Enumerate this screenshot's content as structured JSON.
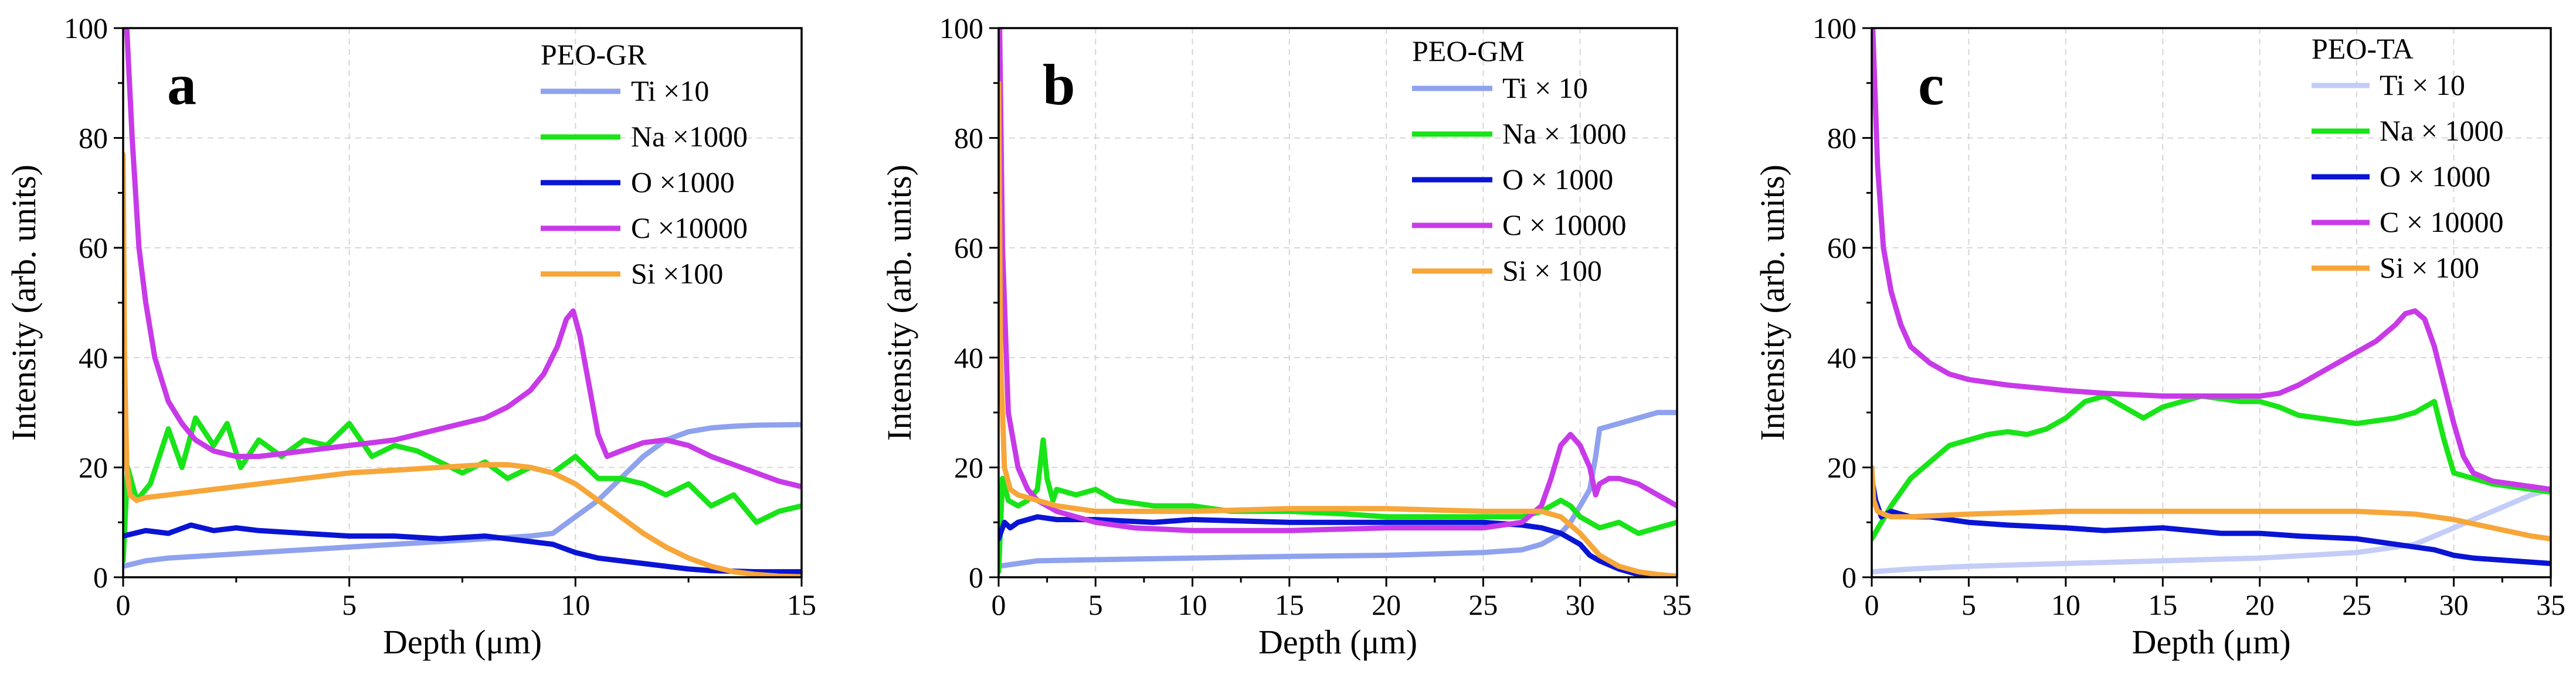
{
  "chart_data": [
    {
      "type": "line",
      "panel_label": "a",
      "legend_title": "PEO-GR",
      "xlabel": "Depth (μm)",
      "ylabel": "Intensity (arb. units)",
      "xlim": [
        0,
        15
      ],
      "ylim": [
        0,
        100
      ],
      "xticks": [
        0,
        5,
        10,
        15
      ],
      "yticks": [
        0,
        20,
        40,
        60,
        80,
        100
      ],
      "grid": true,
      "legend_position": "top-right",
      "series": [
        {
          "name": "Ti ×10",
          "color": "#8fa2ee",
          "x": [
            0,
            0.5,
            1,
            2,
            3,
            4,
            5,
            6,
            7,
            8,
            9,
            9.5,
            10,
            10.5,
            11,
            11.5,
            12,
            12.5,
            13,
            13.5,
            14,
            15
          ],
          "y": [
            2,
            3,
            3.5,
            4,
            4.5,
            5,
            5.5,
            6,
            6.5,
            7,
            7.5,
            8,
            11,
            14,
            18,
            22,
            25,
            26.5,
            27.2,
            27.5,
            27.7,
            27.8
          ]
        },
        {
          "name": "Na ×1000",
          "color": "#18e418",
          "x": [
            0,
            0.1,
            0.3,
            0.6,
            1,
            1.3,
            1.6,
            2,
            2.3,
            2.6,
            3,
            3.5,
            4,
            4.5,
            5,
            5.5,
            6,
            6.5,
            7,
            7.5,
            8,
            8.5,
            9,
            9.5,
            10,
            10.5,
            11,
            11.5,
            12,
            12.5,
            13,
            13.5,
            14,
            14.5,
            15
          ],
          "y": [
            3,
            20,
            14,
            17,
            27,
            20,
            29,
            24,
            28,
            20,
            25,
            22,
            25,
            24,
            28,
            22,
            24,
            23,
            21,
            19,
            21,
            18,
            20,
            19,
            22,
            18,
            18,
            17,
            15,
            17,
            13,
            15,
            10,
            12,
            13
          ]
        },
        {
          "name": "O ×1000",
          "color": "#0a14d4",
          "x": [
            0,
            0.5,
            1,
            1.5,
            2,
            2.5,
            3,
            4,
            5,
            6,
            7,
            8,
            9,
            9.5,
            10,
            10.5,
            11,
            11.5,
            12,
            12.5,
            13,
            14,
            15
          ],
          "y": [
            7.5,
            8.5,
            8,
            9.5,
            8.5,
            9,
            8.5,
            8,
            7.5,
            7.5,
            7,
            7.5,
            6.5,
            6,
            4.5,
            3.5,
            3,
            2.5,
            2,
            1.5,
            1.2,
            1,
            1
          ]
        },
        {
          "name": "C ×10000",
          "color": "#c83ae8",
          "x": [
            0.08,
            0.2,
            0.35,
            0.5,
            0.7,
            1,
            1.3,
            1.6,
            2,
            2.5,
            3,
            3.5,
            4,
            5,
            6,
            7,
            8,
            8.5,
            9,
            9.3,
            9.6,
            9.8,
            9.95,
            10.1,
            10.3,
            10.5,
            10.7,
            11,
            11.5,
            12,
            12.5,
            13,
            13.5,
            14,
            14.5,
            15
          ],
          "y": [
            100,
            80,
            60,
            50,
            40,
            32,
            28,
            25,
            23,
            22,
            22,
            22.5,
            23,
            24,
            25,
            27,
            29,
            31,
            34,
            37,
            42,
            47,
            48.5,
            44,
            35,
            26,
            22,
            23,
            24.5,
            25,
            24,
            22,
            20.5,
            19,
            17.5,
            16.5
          ]
        },
        {
          "name": "Si ×100",
          "color": "#f7a63a",
          "x": [
            0,
            0.03,
            0.08,
            0.15,
            0.3,
            0.5,
            1,
            2,
            3,
            4,
            5,
            6,
            7,
            8,
            8.5,
            9,
            9.5,
            10,
            10.5,
            11,
            11.5,
            12,
            12.5,
            13,
            13.5,
            14,
            14.5,
            15
          ],
          "y": [
            77,
            40,
            20,
            15,
            14,
            14.5,
            15,
            16,
            17,
            18,
            19,
            19.5,
            20,
            20.5,
            20.5,
            20,
            19,
            17,
            14,
            11,
            8,
            5.5,
            3.5,
            2,
            1,
            0.5,
            0.2,
            0.1
          ]
        }
      ]
    },
    {
      "type": "line",
      "panel_label": "b",
      "legend_title": "PEO-GM",
      "xlabel": "Depth (μm)",
      "ylabel": "Intensity (arb. units)",
      "xlim": [
        0,
        35
      ],
      "ylim": [
        0,
        100
      ],
      "xticks": [
        0,
        5,
        10,
        15,
        20,
        25,
        30,
        35
      ],
      "yticks": [
        0,
        20,
        40,
        60,
        80,
        100
      ],
      "grid": true,
      "legend_position": "top-right",
      "series": [
        {
          "name": "Ti × 10",
          "color": "#8fa2ee",
          "x": [
            0,
            1,
            2,
            5,
            10,
            15,
            20,
            25,
            27,
            28,
            29,
            29.5,
            30,
            30.5,
            30.8,
            31,
            32,
            33,
            34,
            35
          ],
          "y": [
            2,
            2.5,
            3,
            3.2,
            3.5,
            3.8,
            4,
            4.5,
            5,
            6,
            8,
            10,
            13,
            16,
            22,
            27,
            28,
            29,
            30,
            30
          ]
        },
        {
          "name": "Na × 1000",
          "color": "#18e418",
          "x": [
            0,
            0.2,
            0.5,
            1,
            1.5,
            2,
            2.3,
            2.5,
            2.8,
            3,
            4,
            5,
            6,
            8,
            10,
            12,
            15,
            18,
            20,
            22,
            25,
            27,
            28,
            29,
            29.5,
            30,
            30.5,
            31,
            32,
            33,
            34,
            35
          ],
          "y": [
            1,
            18,
            14,
            13,
            14,
            16,
            25,
            18,
            14,
            16,
            15,
            16,
            14,
            13,
            13,
            12,
            12,
            11.5,
            11,
            11,
            11,
            11,
            12,
            14,
            13,
            11,
            10,
            9,
            10,
            8,
            9,
            10
          ]
        },
        {
          "name": "O × 1000",
          "color": "#0a14d4",
          "x": [
            0,
            0.3,
            0.6,
            1,
            2,
            3,
            5,
            8,
            10,
            15,
            20,
            25,
            27,
            28,
            29,
            30,
            30.5,
            31,
            32,
            33,
            34,
            35
          ],
          "y": [
            7,
            10,
            9,
            10,
            11,
            10.5,
            10.5,
            10,
            10.5,
            10,
            10,
            10,
            9.5,
            9,
            8,
            6,
            4,
            3,
            1.5,
            0.5,
            0.2,
            0.1
          ]
        },
        {
          "name": "C × 10000",
          "color": "#c83ae8",
          "x": [
            0.05,
            0.2,
            0.5,
            1,
            1.5,
            2,
            3,
            4,
            5,
            7,
            10,
            15,
            20,
            25,
            27,
            28,
            28.5,
            29,
            29.5,
            30,
            30.5,
            30.8,
            31,
            31.5,
            32,
            33,
            34,
            35
          ],
          "y": [
            100,
            60,
            30,
            20,
            16,
            14,
            12,
            11,
            10,
            9,
            8.5,
            8.5,
            9,
            9,
            10,
            13,
            18,
            24,
            26,
            24,
            20,
            15,
            17,
            18,
            18,
            17,
            15,
            13
          ]
        },
        {
          "name": "Si × 100",
          "color": "#f7a63a",
          "x": [
            0,
            0.1,
            0.3,
            0.6,
            1,
            2,
            3,
            5,
            10,
            15,
            20,
            25,
            27,
            28,
            29,
            30,
            30.5,
            31,
            32,
            33,
            34,
            35
          ],
          "y": [
            90,
            40,
            20,
            16,
            15,
            14,
            13,
            12,
            12,
            12.5,
            12.5,
            12,
            12,
            12,
            11,
            8,
            6,
            4,
            2,
            1,
            0.5,
            0.2
          ]
        }
      ]
    },
    {
      "type": "line",
      "panel_label": "c",
      "legend_title": "PEO-TA",
      "xlabel": "Depth (μm)",
      "ylabel": "Intensity (arb. units)",
      "xlim": [
        0,
        35
      ],
      "ylim": [
        0,
        100
      ],
      "xticks": [
        0,
        5,
        10,
        15,
        20,
        25,
        30,
        35
      ],
      "yticks": [
        0,
        20,
        40,
        60,
        80,
        100
      ],
      "grid": true,
      "legend_position": "top-right",
      "series": [
        {
          "name": "Ti × 10",
          "color": "#c3cdf7",
          "x": [
            0,
            2,
            5,
            10,
            15,
            20,
            25,
            28,
            30,
            32,
            34,
            35
          ],
          "y": [
            1,
            1.5,
            2,
            2.5,
            3,
            3.5,
            4.5,
            6,
            9,
            12,
            15,
            16
          ]
        },
        {
          "name": "Na × 1000",
          "color": "#18e418",
          "x": [
            0,
            0.5,
            1,
            2,
            3,
            4,
            5,
            6,
            7,
            8,
            9,
            10,
            11,
            12,
            13,
            14,
            15,
            16,
            17,
            18,
            19,
            20,
            21,
            22,
            23,
            24,
            25,
            26,
            27,
            28,
            28.5,
            29,
            29.5,
            30,
            31,
            32,
            33,
            34,
            35
          ],
          "y": [
            7,
            10,
            13,
            18,
            21,
            24,
            25,
            26,
            26.5,
            26,
            27,
            29,
            32,
            33,
            31,
            29,
            31,
            32,
            33,
            32.5,
            32,
            32,
            31,
            29.5,
            29,
            28.5,
            28,
            28.5,
            29,
            30,
            31,
            32,
            25,
            19,
            18,
            17,
            16.5,
            16,
            15.5
          ]
        },
        {
          "name": "O × 1000",
          "color": "#0a14d4",
          "x": [
            0,
            0.2,
            0.5,
            1,
            2,
            3,
            5,
            7,
            10,
            12,
            15,
            18,
            20,
            22,
            25,
            27,
            29,
            30,
            31,
            33,
            35
          ],
          "y": [
            18,
            14,
            11,
            12,
            11,
            11,
            10,
            9.5,
            9,
            8.5,
            9,
            8,
            8,
            7.5,
            7,
            6,
            5,
            4,
            3.5,
            3,
            2.5
          ]
        },
        {
          "name": "C × 10000",
          "color": "#c83ae8",
          "x": [
            0.05,
            0.3,
            0.6,
            1,
            1.5,
            2,
            3,
            4,
            5,
            7,
            10,
            12,
            15,
            18,
            20,
            21,
            22,
            23,
            24,
            25,
            26,
            27,
            27.5,
            28,
            28.5,
            29,
            29.5,
            30,
            30.5,
            31,
            32,
            33,
            34,
            35
          ],
          "y": [
            100,
            75,
            60,
            52,
            46,
            42,
            39,
            37,
            36,
            35,
            34,
            33.5,
            33,
            33,
            33,
            33.5,
            35,
            37,
            39,
            41,
            43,
            46,
            48,
            48.5,
            47,
            42,
            35,
            28,
            22,
            19,
            17.5,
            17,
            16.5,
            16
          ]
        },
        {
          "name": "Si × 100",
          "color": "#f7a63a",
          "x": [
            0,
            0.1,
            0.3,
            0.6,
            1,
            2,
            5,
            10,
            15,
            20,
            25,
            28,
            30,
            32,
            34,
            35
          ],
          "y": [
            20,
            14,
            12,
            11.5,
            11,
            11,
            11.5,
            12,
            12,
            12,
            12,
            11.5,
            10.5,
            9,
            7.5,
            7
          ]
        }
      ]
    }
  ]
}
